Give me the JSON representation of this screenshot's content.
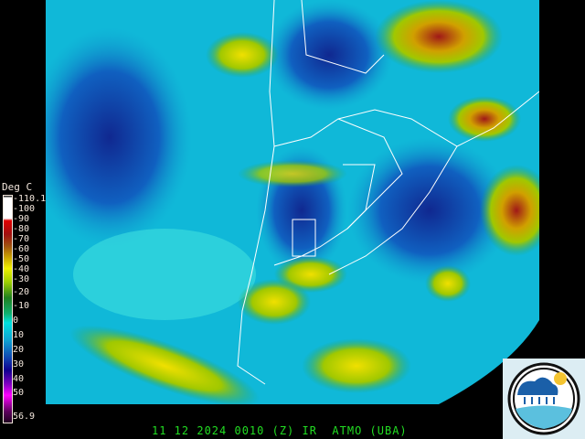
{
  "legend": {
    "title": "Deg C",
    "ticks": [
      "-110.1",
      "-100",
      "-90",
      "-80",
      "-70",
      "-60",
      "-50",
      "-40",
      "-30",
      "-20",
      "-10",
      "0",
      "10",
      "20",
      "30",
      "40",
      "50",
      "56.9"
    ]
  },
  "caption": "11 12 2024 0010 (Z) IR  ATMO (UBA)",
  "colors": {
    "caption": "#22dd22",
    "legend_text": "#f2e6dc",
    "ocean_clear": "#00d8e0",
    "cold_cloud": "#d0a000",
    "very_cold": "#a01010"
  }
}
